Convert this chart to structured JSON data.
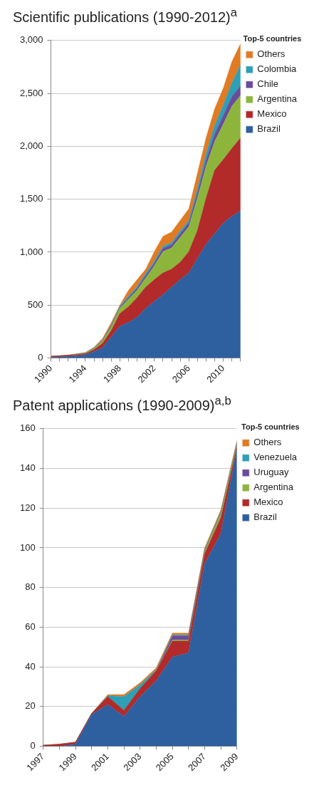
{
  "chart_data": [
    {
      "type": "area",
      "title": "Scientific publications (1990-2012)$^{a}$",
      "legend_title": "Top-5 countries",
      "legend": "right",
      "grid": "y",
      "stacked": true,
      "x": [
        1990,
        1991,
        1992,
        1993,
        1994,
        1995,
        1996,
        1997,
        1998,
        1999,
        2000,
        2001,
        2002,
        2003,
        2004,
        2005,
        2006,
        2007,
        2008,
        2009,
        2010,
        2011,
        2012
      ],
      "xlim": [
        1990,
        2012
      ],
      "xticks": [
        1990,
        {
          "value": 1991,
          "label": null
        },
        {
          "value": 1992,
          "label": null
        },
        {
          "value": 1993,
          "label": null
        },
        1994,
        {
          "value": 1995,
          "label": null
        },
        {
          "value": 1996,
          "label": null
        },
        {
          "value": 1997,
          "label": null
        },
        1998,
        {
          "value": 1999,
          "label": null
        },
        {
          "value": 2000,
          "label": null
        },
        {
          "value": 2001,
          "label": null
        },
        2002,
        {
          "value": 2003,
          "label": null
        },
        {
          "value": 2004,
          "label": null
        },
        {
          "value": 2005,
          "label": null
        },
        2006,
        {
          "value": 2007,
          "label": null
        },
        {
          "value": 2008,
          "label": null
        },
        {
          "value": 2009,
          "label": null
        },
        2010,
        {
          "value": 2011,
          "label": null
        },
        {
          "value": 2012,
          "label": null
        }
      ],
      "ylim": [
        0,
        3000
      ],
      "yticks": [
        {
          "value": 0,
          "label": "0"
        },
        {
          "value": 500,
          "label": "500"
        },
        {
          "value": 1000,
          "label": "1,000"
        },
        {
          "value": 1500,
          "label": "1,500"
        },
        {
          "value": 2000,
          "label": "2,000"
        },
        {
          "value": 2500,
          "label": "2,500"
        },
        {
          "value": 3000,
          "label": "3,000"
        }
      ],
      "series": [
        {
          "name": "Brazil",
          "color": "#2e5f9e",
          "values": [
            5,
            10,
            15,
            20,
            30,
            60,
            100,
            200,
            300,
            335,
            385,
            470,
            535,
            600,
            670,
            740,
            805,
            940,
            1075,
            1175,
            1275,
            1340,
            1390
          ]
        },
        {
          "name": "Mexico",
          "color": "#b22a2a",
          "values": [
            10,
            10,
            10,
            10,
            10,
            20,
            40,
            60,
            120,
            150,
            185,
            200,
            205,
            205,
            170,
            165,
            200,
            265,
            435,
            600,
            600,
            640,
            690
          ]
        },
        {
          "name": "Argentina",
          "color": "#8db53c",
          "values": [
            0,
            0,
            0,
            3,
            5,
            10,
            20,
            30,
            50,
            70,
            70,
            85,
            130,
            200,
            200,
            235,
            235,
            305,
            300,
            270,
            335,
            400,
            400
          ]
        },
        {
          "name": "Chile",
          "color": "#6a4c9c",
          "values": [
            0,
            0,
            0,
            2,
            2,
            3,
            5,
            10,
            10,
            15,
            20,
            25,
            25,
            30,
            30,
            35,
            35,
            50,
            60,
            70,
            80,
            90,
            90
          ]
        },
        {
          "name": "Colombia",
          "color": "#2f9fb5",
          "values": [
            0,
            0,
            0,
            2,
            2,
            3,
            5,
            10,
            10,
            15,
            15,
            20,
            20,
            20,
            20,
            25,
            25,
            40,
            60,
            80,
            100,
            130,
            200
          ]
        },
        {
          "name": "Others",
          "color": "#e07b24",
          "values": [
            2,
            2,
            3,
            3,
            3,
            5,
            15,
            25,
            10,
            55,
            65,
            40,
            90,
            95,
            100,
            100,
            110,
            145,
            150,
            160,
            160,
            200,
            200
          ]
        }
      ]
    },
    {
      "type": "area",
      "title": "Patent applications (1990-2009)$^{a,b}$",
      "legend_title": "Top-5 countries",
      "legend": "right",
      "grid": "y",
      "stacked": true,
      "x": [
        1997,
        1998,
        1999,
        2000,
        2001,
        2002,
        2003,
        2004,
        2005,
        2006,
        2007,
        2008,
        2009
      ],
      "xlim": [
        1997,
        2009
      ],
      "xticks": [
        1997,
        {
          "value": 1998,
          "label": null
        },
        1999,
        {
          "value": 2000,
          "label": null
        },
        2001,
        {
          "value": 2002,
          "label": null
        },
        2003,
        {
          "value": 2004,
          "label": null
        },
        2005,
        {
          "value": 2006,
          "label": null
        },
        2007,
        {
          "value": 2008,
          "label": null
        },
        2009
      ],
      "ylim": [
        0,
        160
      ],
      "yticks": [
        0,
        20,
        40,
        60,
        80,
        100,
        120,
        140,
        160
      ],
      "series": [
        {
          "name": "Brazil",
          "color": "#2e5f9e",
          "values": [
            0,
            0,
            1,
            16,
            21,
            15,
            25,
            33,
            45,
            47,
            92,
            107,
            150
          ]
        },
        {
          "name": "Mexico",
          "color": "#b22a2a",
          "values": [
            0.5,
            1,
            1,
            0.5,
            4,
            3,
            4,
            5,
            8,
            6,
            5,
            8,
            1
          ]
        },
        {
          "name": "Argentina",
          "color": "#8db53c",
          "values": [
            0,
            0,
            0,
            0,
            0,
            0,
            0,
            0,
            0.5,
            0.5,
            1,
            2,
            1
          ]
        },
        {
          "name": "Uruguay",
          "color": "#6a4c9c",
          "values": [
            0,
            0,
            0,
            0,
            0,
            0,
            0,
            0,
            2,
            2,
            0.5,
            0.5,
            0.5
          ]
        },
        {
          "name": "Venezuela",
          "color": "#2f9fb5",
          "values": [
            0,
            0,
            0,
            0,
            0.5,
            7,
            2,
            0.5,
            0.5,
            0.5,
            0.5,
            0.5,
            0.5
          ]
        },
        {
          "name": "Others",
          "color": "#e07b24",
          "values": [
            0,
            0,
            0,
            0,
            0.5,
            1,
            1,
            1,
            1,
            1,
            1,
            1,
            1
          ]
        }
      ]
    }
  ]
}
